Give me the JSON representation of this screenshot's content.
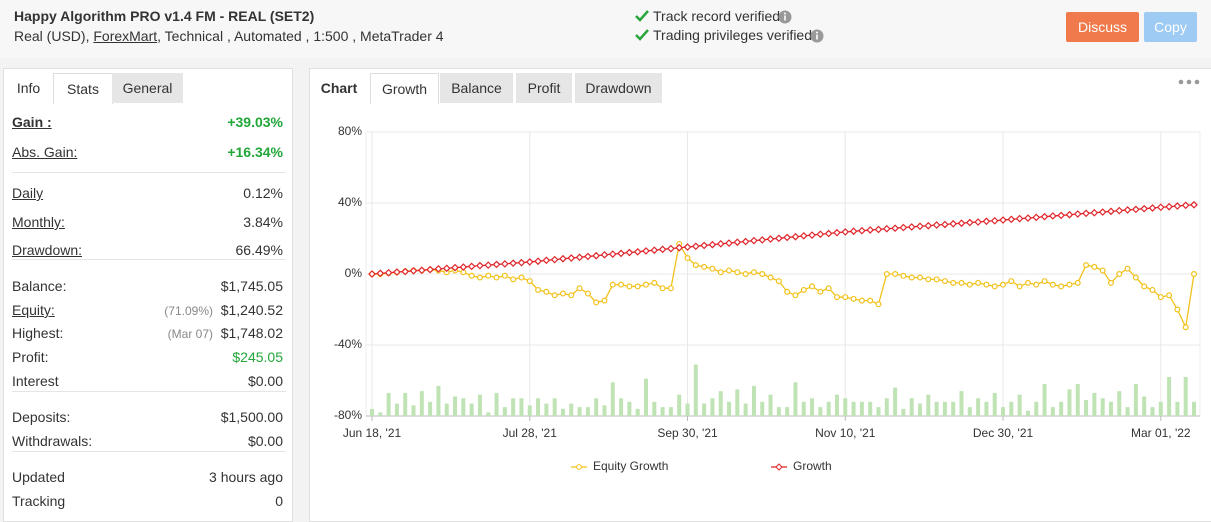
{
  "header": {
    "title": "Happy Algorithm PRO v1.4 FM - REAL (SET2)",
    "details": [
      "Real (USD),",
      "ForexMart",
      ", Technical , Automated , 1:500 , MetaTrader 4"
    ],
    "verified": [
      "Track record verified",
      "Trading privileges verified"
    ],
    "buttons": [
      "Discuss",
      "Copy"
    ]
  },
  "side_tabs": [
    "Info",
    "Stats",
    "General"
  ],
  "stats": [
    [
      {
        "label": "Gain :",
        "value": "+39.03%",
        "color": "#21a637"
      },
      {
        "label": "Abs. Gain:",
        "value": "+16.34%",
        "color": "#21a637"
      }
    ],
    [
      {
        "label": "Daily",
        "value": "0.12%"
      },
      {
        "label": "Monthly:",
        "value": "3.84%"
      },
      {
        "label": "Drawdown:",
        "value": "66.49%"
      }
    ],
    [
      {
        "label": "Balance:",
        "value": "$1,745.05"
      },
      {
        "label": "Equity:",
        "note": "(71.09%)",
        "value": "$1,240.52"
      },
      {
        "label": "Highest:",
        "note": "(Mar 07)",
        "value": "$1,748.02"
      },
      {
        "label": "Profit:",
        "value": "$245.05",
        "color": "#21a637"
      },
      {
        "label": "Interest",
        "value": "$0.00"
      }
    ],
    [
      {
        "label": "Deposits:",
        "value": "$1,500.00"
      },
      {
        "label": "Withdrawals:",
        "value": "$0.00"
      }
    ],
    [
      {
        "label": "Updated",
        "value": "3 hours ago"
      },
      {
        "label": "Tracking",
        "value": "0"
      }
    ]
  ],
  "chart_tabs": [
    "Chart",
    "Growth",
    "Balance",
    "Profit",
    "Drawdown"
  ],
  "chart_data": {
    "type": "line",
    "categories": [
      "Jun 18, '21",
      null,
      null,
      null,
      null,
      null,
      null,
      null,
      null,
      null,
      null,
      null,
      null,
      null,
      null,
      null,
      null,
      null,
      null,
      "Jul 28, '21",
      null,
      null,
      null,
      null,
      null,
      null,
      null,
      null,
      null,
      null,
      null,
      null,
      null,
      null,
      null,
      null,
      null,
      null,
      "Sep 30, '21",
      null,
      null,
      null,
      null,
      null,
      null,
      null,
      null,
      null,
      null,
      null,
      null,
      null,
      null,
      null,
      null,
      null,
      null,
      "Nov 10, '21",
      null,
      null,
      null,
      null,
      null,
      null,
      null,
      null,
      null,
      null,
      null,
      null,
      null,
      null,
      null,
      null,
      null,
      null,
      "Dec 30, '21",
      null,
      null,
      null,
      null,
      null,
      null,
      null,
      null,
      null,
      null,
      null,
      null,
      null,
      null,
      null,
      null,
      null,
      null,
      "Mar 01, '22",
      null,
      null,
      null,
      null
    ],
    "ylim": [
      -80,
      80
    ],
    "yticks": [
      {
        "value": 80,
        "label": "80%"
      },
      {
        "value": 40,
        "label": "40%"
      },
      {
        "value": 0,
        "label": "0%"
      },
      {
        "value": -40,
        "label": "-40%"
      },
      {
        "value": -80,
        "label": "-80%"
      }
    ],
    "grid": true,
    "series": [
      {
        "name": "Equity Growth",
        "color": "#f2c21b",
        "values": [
          0,
          0,
          0.5,
          1,
          1.5,
          2,
          2,
          2.5,
          2,
          1,
          2,
          1,
          -1,
          -2,
          -1,
          -2,
          -1,
          -3,
          -2,
          -4,
          -9,
          -10,
          -12,
          -11,
          -12,
          -8,
          -11,
          -16,
          -15,
          -6,
          -6,
          -7,
          -7,
          -6,
          -5,
          -8,
          -8,
          17,
          9,
          5,
          4,
          3,
          1,
          2,
          1,
          0,
          1,
          0,
          -2,
          -4,
          -10,
          -12,
          -9,
          -7,
          -10,
          -8,
          -13,
          -13,
          -14,
          -15,
          -15,
          -17,
          0,
          0,
          -1,
          -2,
          -2,
          -3,
          -3,
          -4,
          -5,
          -5,
          -6,
          -5,
          -6,
          -7,
          -6,
          -4,
          -7,
          -5,
          -6,
          -4,
          -6,
          -7,
          -6,
          -5,
          5,
          4,
          2,
          -5,
          0,
          3,
          -2,
          -7,
          -9,
          -13,
          -12,
          -20,
          -30,
          0
        ]
      },
      {
        "name": "Growth",
        "color": "#e0262b",
        "values": [
          0,
          0.4,
          0.7,
          1.1,
          1.4,
          1.8,
          2.1,
          2.5,
          2.9,
          3.2,
          3.6,
          3.9,
          4.3,
          4.7,
          5.0,
          5.4,
          5.7,
          6.1,
          6.4,
          6.8,
          7.2,
          7.7,
          8.1,
          8.6,
          9.0,
          9.4,
          9.9,
          10.3,
          10.8,
          11.2,
          11.6,
          12.1,
          12.5,
          13.0,
          13.4,
          13.9,
          14.3,
          14.8,
          15.2,
          15.6,
          16.1,
          16.5,
          17.0,
          17.4,
          17.9,
          18.3,
          18.8,
          19.2,
          19.7,
          20.1,
          20.6,
          21.0,
          21.5,
          21.9,
          22.4,
          22.8,
          23.3,
          23.7,
          24.1,
          24.4,
          24.8,
          25.1,
          25.5,
          25.8,
          26.2,
          26.5,
          26.9,
          27.2,
          27.6,
          27.9,
          28.3,
          28.6,
          29.0,
          29.3,
          29.7,
          30.0,
          30.4,
          30.8,
          31.2,
          31.5,
          31.9,
          32.3,
          32.7,
          33.0,
          33.4,
          33.8,
          34.2,
          34.5,
          34.9,
          35.3,
          35.7,
          36.1,
          36.4,
          36.8,
          37.2,
          37.6,
          37.9,
          38.3,
          38.7,
          39.0
        ]
      },
      {
        "type": "bar",
        "color": "#bfe3b4",
        "values": [
          -76,
          -78,
          -67,
          -73,
          -67,
          -74,
          -66,
          -72,
          -63,
          -73,
          -69,
          -70,
          -73,
          -68,
          -78,
          -67,
          -75,
          -70,
          -70,
          -74,
          -70,
          -73,
          -70,
          -76,
          -73,
          -75,
          -75,
          -70,
          -74,
          -61,
          -70,
          -72,
          -76,
          -59,
          -72,
          -75,
          -75,
          -68,
          -73,
          -51,
          -73,
          -70,
          -66,
          -72,
          -65,
          -73,
          -63,
          -72,
          -68,
          -75,
          -75,
          -61,
          -72,
          -70,
          -75,
          -72,
          -68,
          -70,
          -72,
          -72,
          -72,
          -75,
          -70,
          -64,
          -76,
          -70,
          -73,
          -68,
          -72,
          -72,
          -72,
          -66,
          -75,
          -70,
          -72,
          -67,
          -75,
          -72,
          -68,
          -77,
          -72,
          -62,
          -75,
          -72,
          -65,
          -62,
          -71,
          -67,
          -70,
          -72,
          -66,
          -75,
          -62,
          -69,
          -75,
          -72,
          -58,
          -72,
          -58,
          -72
        ]
      }
    ]
  }
}
